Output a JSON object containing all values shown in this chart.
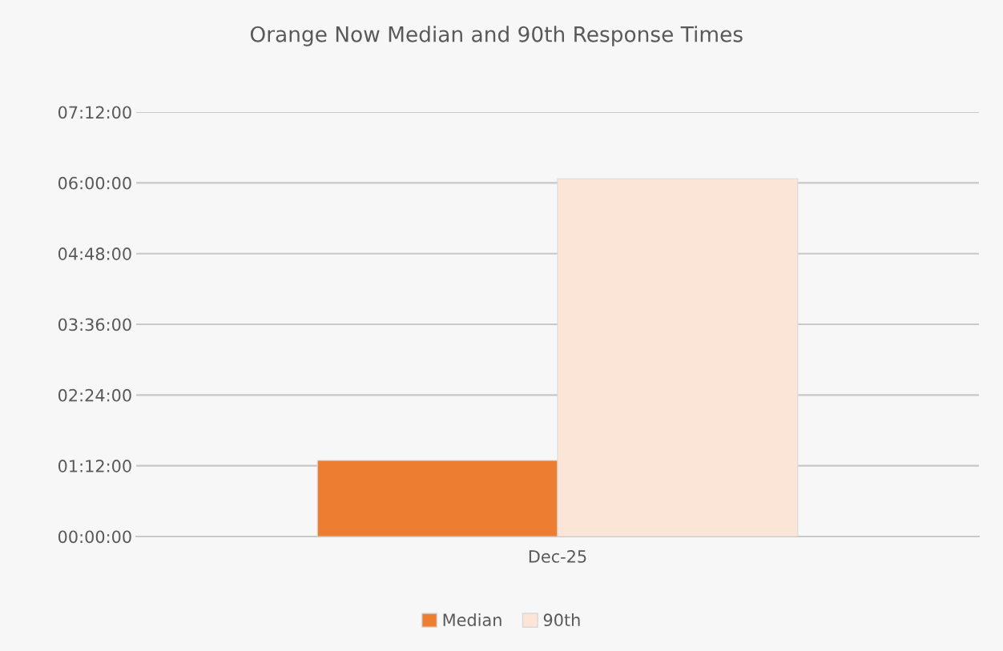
{
  "chart_data": {
    "type": "bar",
    "title": "Orange Now Median and 90th Response Times",
    "categories": [
      "Dec-25"
    ],
    "series": [
      {
        "name": "Median",
        "color": "#ed7d31",
        "values": [
          1.29
        ]
      },
      {
        "name": "90th",
        "color": "#fbe5d6",
        "values": [
          6.07
        ]
      }
    ],
    "ylim": [
      0,
      7.2
    ],
    "yticks": [
      {
        "value": 0,
        "label": "00:00:00"
      },
      {
        "value": 1.2,
        "label": "01:12:00"
      },
      {
        "value": 2.4,
        "label": "02:24:00"
      },
      {
        "value": 3.6,
        "label": "03:36:00"
      },
      {
        "value": 4.8,
        "label": "04:48:00"
      },
      {
        "value": 6.0,
        "label": "06:00:00"
      },
      {
        "value": 7.2,
        "label": "07:12:00"
      }
    ],
    "grid": "y",
    "legend": "bottom"
  }
}
